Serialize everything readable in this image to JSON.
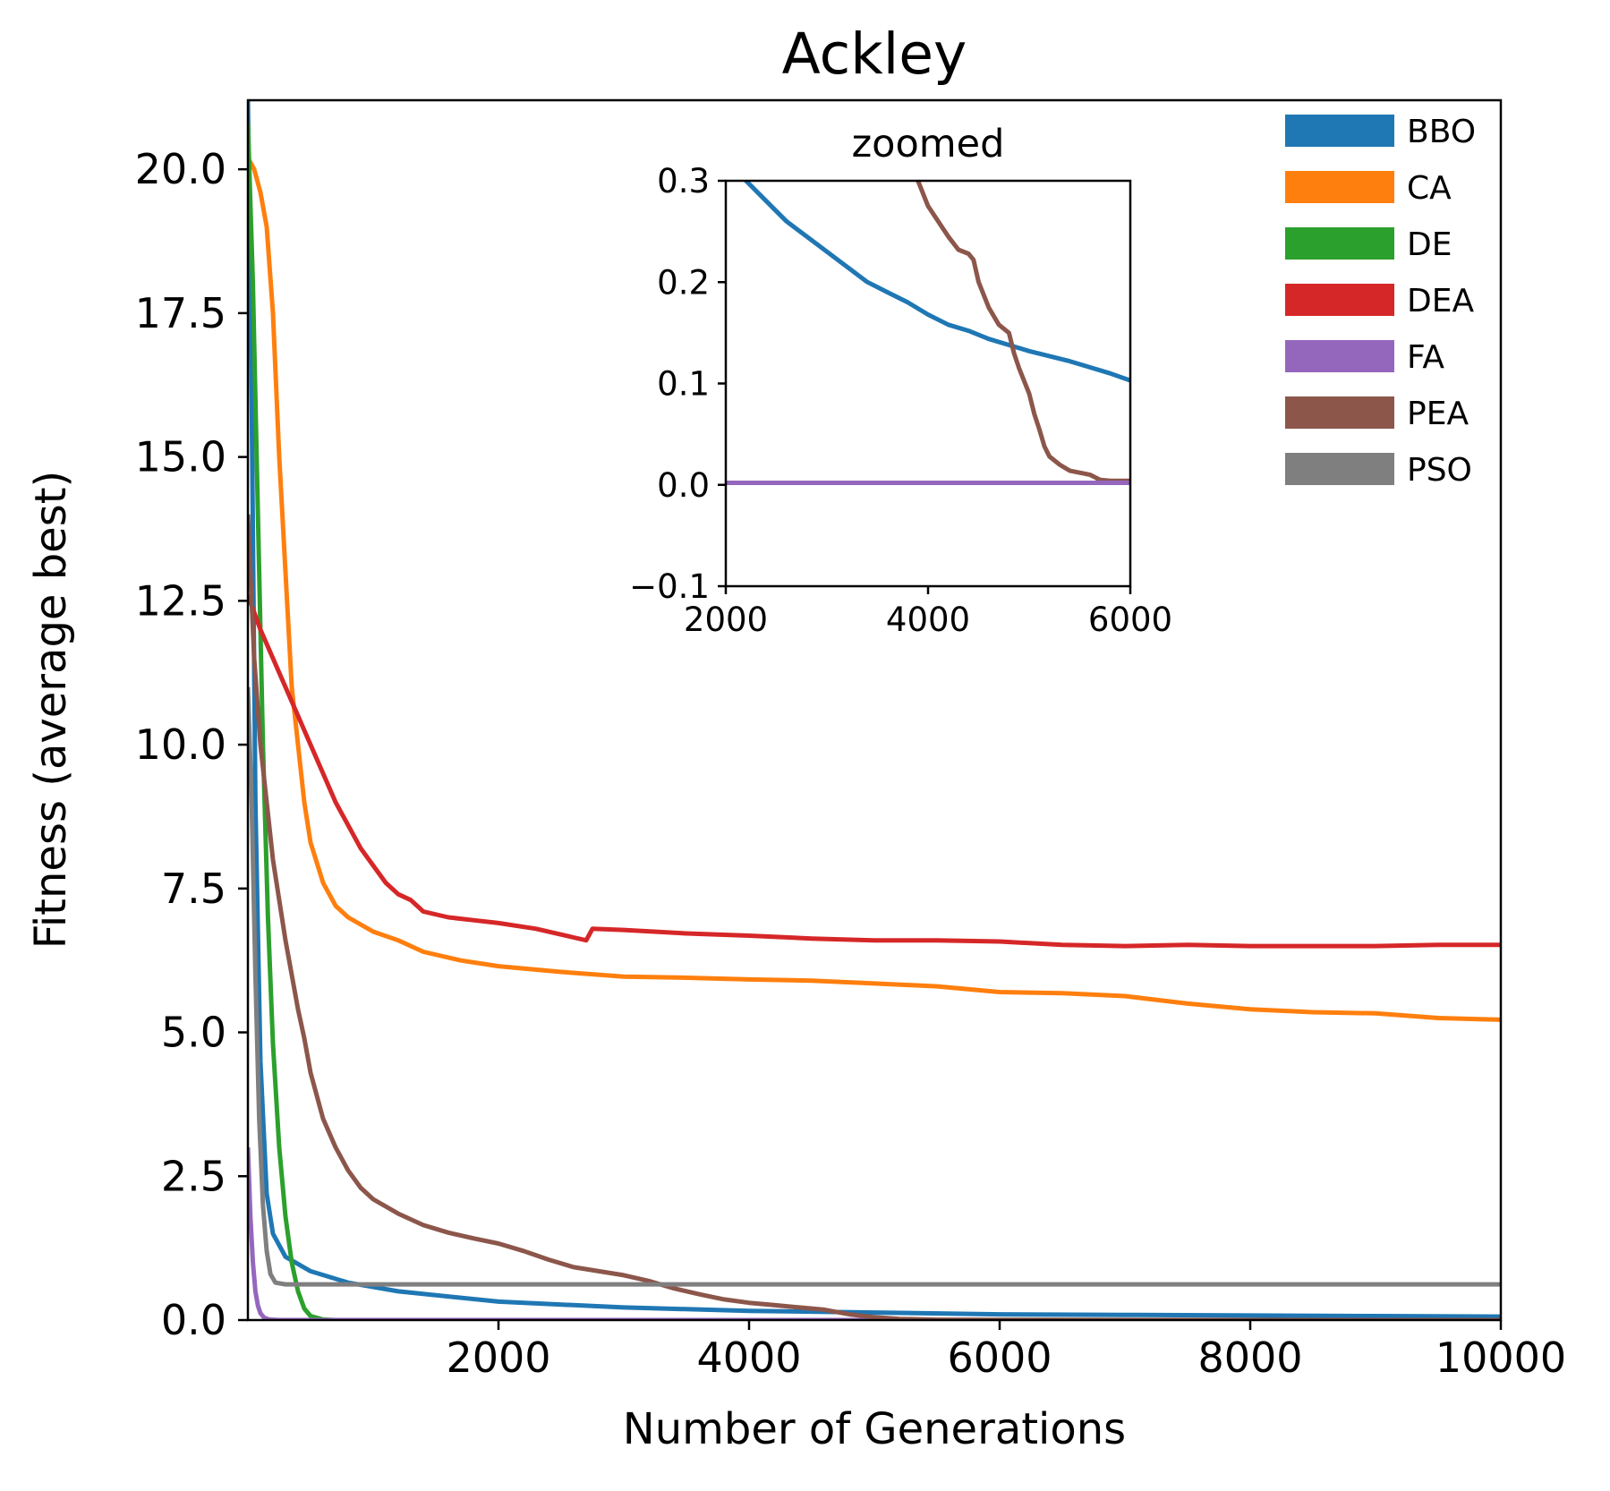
{
  "chart_data": [
    {
      "type": "line",
      "title": "Ackley",
      "xlabel": "Number of Generations",
      "ylabel": "Fitness (average best)",
      "xlim": [
        0,
        10000
      ],
      "ylim": [
        0,
        21.2
      ],
      "xticks": [
        2000,
        4000,
        6000,
        8000,
        10000
      ],
      "xtick_labels": [
        "2000",
        "4000",
        "6000",
        "8000",
        "10000"
      ],
      "yticks": [
        0,
        2.5,
        5,
        7.5,
        10,
        12.5,
        15,
        17.5,
        20
      ],
      "ytick_labels": [
        "0.0",
        "2.5",
        "5.0",
        "7.5",
        "10.0",
        "12.5",
        "15.0",
        "17.5",
        "20.0"
      ],
      "grid": false,
      "legend_position": "top-right",
      "series": [
        {
          "name": "BBO",
          "color": "#1f77b4",
          "points": [
            [
              0,
              21.2
            ],
            [
              30,
              16
            ],
            [
              60,
              9
            ],
            [
              100,
              4.5
            ],
            [
              150,
              2.2
            ],
            [
              200,
              1.5
            ],
            [
              300,
              1.1
            ],
            [
              500,
              0.85
            ],
            [
              800,
              0.65
            ],
            [
              1200,
              0.5
            ],
            [
              2000,
              0.32
            ],
            [
              3000,
              0.22
            ],
            [
              4000,
              0.16
            ],
            [
              5000,
              0.13
            ],
            [
              6000,
              0.1
            ],
            [
              7000,
              0.09
            ],
            [
              8000,
              0.08
            ],
            [
              9000,
              0.07
            ],
            [
              10000,
              0.06
            ]
          ]
        },
        {
          "name": "CA",
          "color": "#ff7f0e",
          "points": [
            [
              0,
              20.2
            ],
            [
              50,
              20
            ],
            [
              100,
              19.6
            ],
            [
              150,
              19
            ],
            [
              200,
              17.5
            ],
            [
              250,
              15
            ],
            [
              300,
              13
            ],
            [
              350,
              11
            ],
            [
              400,
              10
            ],
            [
              450,
              9
            ],
            [
              500,
              8.3
            ],
            [
              600,
              7.6
            ],
            [
              700,
              7.2
            ],
            [
              800,
              7.0
            ],
            [
              1000,
              6.75
            ],
            [
              1200,
              6.6
            ],
            [
              1400,
              6.4
            ],
            [
              1700,
              6.25
            ],
            [
              2000,
              6.15
            ],
            [
              2500,
              6.05
            ],
            [
              3000,
              5.97
            ],
            [
              3500,
              5.95
            ],
            [
              4000,
              5.92
            ],
            [
              4500,
              5.9
            ],
            [
              5000,
              5.85
            ],
            [
              5500,
              5.8
            ],
            [
              6000,
              5.7
            ],
            [
              6500,
              5.68
            ],
            [
              7000,
              5.63
            ],
            [
              7500,
              5.5
            ],
            [
              8000,
              5.4
            ],
            [
              8500,
              5.35
            ],
            [
              9000,
              5.33
            ],
            [
              9500,
              5.25
            ],
            [
              10000,
              5.22
            ]
          ]
        },
        {
          "name": "DE",
          "color": "#2ca02c",
          "points": [
            [
              0,
              20.8
            ],
            [
              40,
              18
            ],
            [
              80,
              14
            ],
            [
              120,
              10
            ],
            [
              160,
              7
            ],
            [
              200,
              4.8
            ],
            [
              250,
              3
            ],
            [
              300,
              1.8
            ],
            [
              350,
              1
            ],
            [
              400,
              0.5
            ],
            [
              450,
              0.2
            ],
            [
              500,
              0.07
            ],
            [
              600,
              0.01
            ],
            [
              700,
              0
            ],
            [
              10000,
              0
            ]
          ]
        },
        {
          "name": "DEA",
          "color": "#d62728",
          "points": [
            [
              0,
              12.6
            ],
            [
              100,
              12
            ],
            [
              200,
              11.5
            ],
            [
              300,
              11
            ],
            [
              400,
              10.5
            ],
            [
              500,
              10
            ],
            [
              600,
              9.5
            ],
            [
              700,
              9
            ],
            [
              800,
              8.6
            ],
            [
              900,
              8.2
            ],
            [
              1000,
              7.9
            ],
            [
              1100,
              7.6
            ],
            [
              1200,
              7.4
            ],
            [
              1300,
              7.3
            ],
            [
              1400,
              7.1
            ],
            [
              1600,
              7.0
            ],
            [
              1800,
              6.95
            ],
            [
              2000,
              6.9
            ],
            [
              2300,
              6.8
            ],
            [
              2600,
              6.65
            ],
            [
              2700,
              6.6
            ],
            [
              2750,
              6.8
            ],
            [
              3000,
              6.78
            ],
            [
              3500,
              6.72
            ],
            [
              4000,
              6.68
            ],
            [
              4500,
              6.63
            ],
            [
              5000,
              6.6
            ],
            [
              5500,
              6.6
            ],
            [
              6000,
              6.58
            ],
            [
              6500,
              6.52
            ],
            [
              7000,
              6.5
            ],
            [
              7500,
              6.52
            ],
            [
              8000,
              6.5
            ],
            [
              8500,
              6.5
            ],
            [
              9000,
              6.5
            ],
            [
              9500,
              6.52
            ],
            [
              10000,
              6.52
            ]
          ]
        },
        {
          "name": "FA",
          "color": "#9467bd",
          "points": [
            [
              0,
              3
            ],
            [
              20,
              1.8
            ],
            [
              40,
              1.0
            ],
            [
              60,
              0.5
            ],
            [
              80,
              0.25
            ],
            [
              100,
              0.12
            ],
            [
              130,
              0.04
            ],
            [
              170,
              0.01
            ],
            [
              250,
              0
            ],
            [
              10000,
              0
            ]
          ]
        },
        {
          "name": "PEA",
          "color": "#8c564b",
          "points": [
            [
              0,
              14
            ],
            [
              50,
              11.5
            ],
            [
              100,
              10
            ],
            [
              150,
              9
            ],
            [
              200,
              8
            ],
            [
              250,
              7.3
            ],
            [
              300,
              6.6
            ],
            [
              350,
              6
            ],
            [
              400,
              5.4
            ],
            [
              450,
              4.9
            ],
            [
              500,
              4.3
            ],
            [
              550,
              3.9
            ],
            [
              600,
              3.5
            ],
            [
              700,
              3
            ],
            [
              800,
              2.6
            ],
            [
              900,
              2.3
            ],
            [
              1000,
              2.1
            ],
            [
              1200,
              1.85
            ],
            [
              1400,
              1.65
            ],
            [
              1600,
              1.52
            ],
            [
              1800,
              1.42
            ],
            [
              2000,
              1.33
            ],
            [
              2200,
              1.2
            ],
            [
              2400,
              1.05
            ],
            [
              2600,
              0.92
            ],
            [
              2800,
              0.85
            ],
            [
              3000,
              0.78
            ],
            [
              3200,
              0.68
            ],
            [
              3400,
              0.55
            ],
            [
              3600,
              0.45
            ],
            [
              3800,
              0.36
            ],
            [
              4000,
              0.3
            ],
            [
              4200,
              0.26
            ],
            [
              4400,
              0.22
            ],
            [
              4600,
              0.18
            ],
            [
              4800,
              0.1
            ],
            [
              5000,
              0.05
            ],
            [
              5200,
              0.02
            ],
            [
              5500,
              0.006
            ],
            [
              6000,
              0.003
            ],
            [
              10000,
              0
            ]
          ]
        },
        {
          "name": "PSO",
          "color": "#7f7f7f",
          "points": [
            [
              0,
              11
            ],
            [
              30,
              9
            ],
            [
              60,
              6
            ],
            [
              90,
              3.5
            ],
            [
              120,
              2.0
            ],
            [
              150,
              1.2
            ],
            [
              180,
              0.8
            ],
            [
              220,
              0.65
            ],
            [
              300,
              0.62
            ],
            [
              10000,
              0.62
            ]
          ]
        }
      ]
    },
    {
      "type": "line",
      "title": "zoomed",
      "xlim": [
        2000,
        6000
      ],
      "ylim": [
        -0.1,
        0.3
      ],
      "xticks": [
        2000,
        4000,
        6000
      ],
      "xtick_labels": [
        "2000",
        "4000",
        "6000"
      ],
      "yticks": [
        -0.1,
        0.0,
        0.1,
        0.2,
        0.3
      ],
      "ytick_labels": [
        "−0.1",
        "0.0",
        "0.1",
        "0.2",
        "0.3"
      ],
      "grid": false,
      "series": [
        {
          "name": "BBO",
          "color": "#1f77b4",
          "points": [
            [
              2000,
              0.32
            ],
            [
              2200,
              0.3
            ],
            [
              2400,
              0.28
            ],
            [
              2600,
              0.26
            ],
            [
              2800,
              0.245
            ],
            [
              3000,
              0.23
            ],
            [
              3200,
              0.215
            ],
            [
              3400,
              0.2
            ],
            [
              3600,
              0.19
            ],
            [
              3800,
              0.18
            ],
            [
              4000,
              0.168
            ],
            [
              4200,
              0.158
            ],
            [
              4400,
              0.152
            ],
            [
              4600,
              0.144
            ],
            [
              4800,
              0.138
            ],
            [
              5000,
              0.132
            ],
            [
              5200,
              0.127
            ],
            [
              5400,
              0.122
            ],
            [
              5600,
              0.116
            ],
            [
              5800,
              0.11
            ],
            [
              6000,
              0.103
            ]
          ]
        },
        {
          "name": "PEA",
          "color": "#8c564b",
          "points": [
            [
              3900,
              0.3
            ],
            [
              4000,
              0.275
            ],
            [
              4100,
              0.26
            ],
            [
              4200,
              0.245
            ],
            [
              4300,
              0.232
            ],
            [
              4400,
              0.228
            ],
            [
              4450,
              0.222
            ],
            [
              4500,
              0.2
            ],
            [
              4600,
              0.175
            ],
            [
              4700,
              0.158
            ],
            [
              4800,
              0.15
            ],
            [
              4850,
              0.13
            ],
            [
              4900,
              0.115
            ],
            [
              5000,
              0.09
            ],
            [
              5050,
              0.07
            ],
            [
              5100,
              0.055
            ],
            [
              5150,
              0.038
            ],
            [
              5200,
              0.028
            ],
            [
              5300,
              0.02
            ],
            [
              5400,
              0.014
            ],
            [
              5500,
              0.012
            ],
            [
              5600,
              0.01
            ],
            [
              5700,
              0.005
            ],
            [
              5800,
              0.004
            ],
            [
              6000,
              0.004
            ]
          ]
        },
        {
          "name": "FA",
          "color": "#9467bd",
          "points": [
            [
              2000,
              0.002
            ],
            [
              6000,
              0.002
            ]
          ]
        }
      ]
    }
  ]
}
